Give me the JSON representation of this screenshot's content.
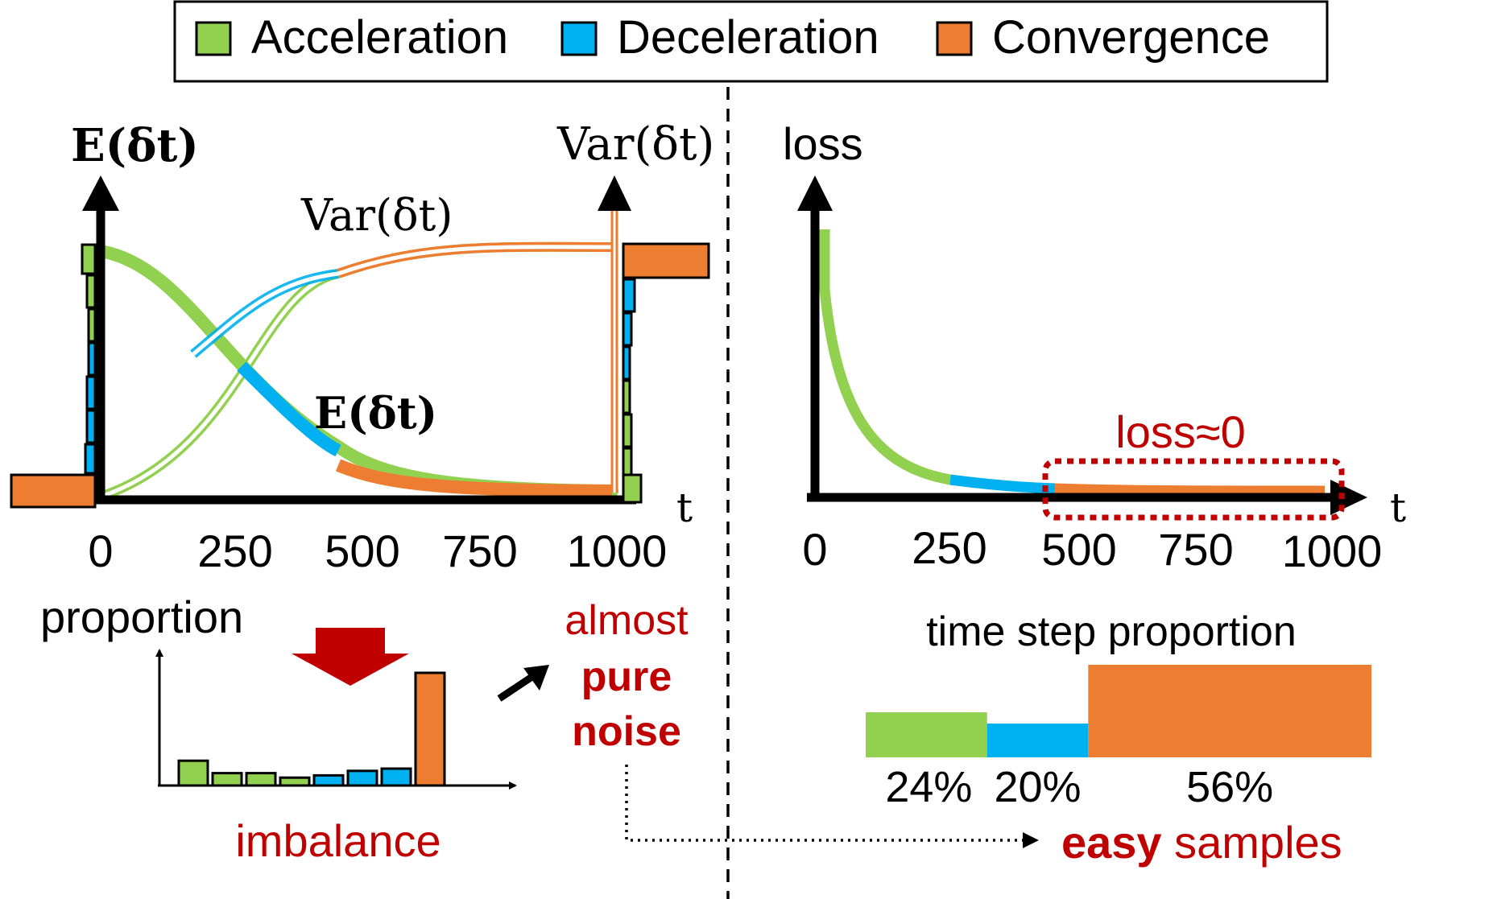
{
  "legend": {
    "items": [
      {
        "label": "Acceleration",
        "color": "#92d050"
      },
      {
        "label": "Deceleration",
        "color": "#00b0f0"
      },
      {
        "label": "Convergence",
        "color": "#ed7d31"
      }
    ]
  },
  "left_panel": {
    "left_axis_label": "E(δt)",
    "right_axis_label": "Var(δt)",
    "curve_label_var": "Var(δt)",
    "curve_label_e": "E(δt)",
    "x_axis_label": "t",
    "x_ticks": [
      "0",
      "250",
      "500",
      "750",
      "1000"
    ],
    "arrow_caption": "almost",
    "arrow_caption_bold_1": "pure",
    "arrow_caption_bold_2": "noise",
    "proportion_label": "proportion",
    "imbalance_label": "imbalance",
    "histogram": {
      "values": [
        0.22,
        0.11,
        0.11,
        0.07,
        0.09,
        0.13,
        0.15,
        1.0
      ],
      "colors": [
        "#92d050",
        "#92d050",
        "#92d050",
        "#92d050",
        "#00b0f0",
        "#00b0f0",
        "#00b0f0",
        "#ed7d31"
      ]
    }
  },
  "right_panel": {
    "y_axis_label": "loss",
    "x_axis_label": "t",
    "x_ticks": [
      "0",
      "250",
      "500",
      "750",
      "1000"
    ],
    "loss_annotation": "loss≈0",
    "proportion_title": "time step proportion",
    "bar": {
      "segments": [
        {
          "percent": 24,
          "label": "24%",
          "color": "#92d050"
        },
        {
          "percent": 20,
          "label": "20%",
          "color": "#00b0f0"
        },
        {
          "percent": 56,
          "label": "56%",
          "color": "#ed7d31"
        }
      ]
    },
    "bottom_caption_bold": "easy",
    "bottom_caption": "samples"
  },
  "colors": {
    "acceleration": "#92d050",
    "deceleration": "#00b0f0",
    "convergence": "#ed7d31",
    "highlight": "#c00000"
  },
  "chart_data": [
    {
      "type": "line",
      "title": "",
      "xlabel": "t",
      "ylabel_left": "E(δt)",
      "ylabel_right": "Var(δt)",
      "x": [
        0,
        250,
        500,
        750,
        1000
      ],
      "series": [
        {
          "name": "E(δt)",
          "description": "decreasing sigmoid",
          "values": [
            1.0,
            0.55,
            0.12,
            0.02,
            0.02
          ]
        },
        {
          "name": "Var(δt)",
          "description": "increasing sigmoid",
          "values": [
            0.0,
            0.45,
            0.88,
            0.98,
            0.98
          ]
        }
      ]
    },
    {
      "type": "line",
      "title": "",
      "xlabel": "t",
      "ylabel": "loss",
      "x": [
        0,
        250,
        500,
        750,
        1000
      ],
      "series": [
        {
          "name": "loss",
          "values": [
            1.0,
            0.07,
            0.03,
            0.01,
            0.0
          ]
        }
      ]
    },
    {
      "type": "bar",
      "title": "time step proportion",
      "categories": [
        "Acceleration",
        "Deceleration",
        "Convergence"
      ],
      "values": [
        24,
        20,
        56
      ]
    }
  ]
}
